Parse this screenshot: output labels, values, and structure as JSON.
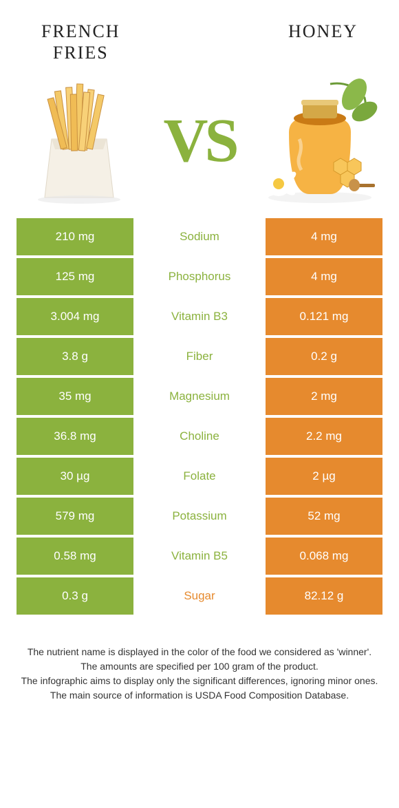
{
  "left_title": "FRENCH FRIES",
  "right_title": "HONEY",
  "vs_label": "VS",
  "colors": {
    "green": "#8bb23e",
    "orange": "#e68a2e",
    "row_gap": "#ffffff"
  },
  "rows": [
    {
      "left": "210 mg",
      "label": "Sodium",
      "right": "4 mg",
      "winner": "left"
    },
    {
      "left": "125 mg",
      "label": "Phosphorus",
      "right": "4 mg",
      "winner": "left"
    },
    {
      "left": "3.004 mg",
      "label": "Vitamin B3",
      "right": "0.121 mg",
      "winner": "left"
    },
    {
      "left": "3.8 g",
      "label": "Fiber",
      "right": "0.2 g",
      "winner": "left"
    },
    {
      "left": "35 mg",
      "label": "Magnesium",
      "right": "2 mg",
      "winner": "left"
    },
    {
      "left": "36.8 mg",
      "label": "Choline",
      "right": "2.2 mg",
      "winner": "left"
    },
    {
      "left": "30 µg",
      "label": "Folate",
      "right": "2 µg",
      "winner": "left"
    },
    {
      "left": "579 mg",
      "label": "Potassium",
      "right": "52 mg",
      "winner": "left"
    },
    {
      "left": "0.58 mg",
      "label": "Vitamin B5",
      "right": "0.068 mg",
      "winner": "left"
    },
    {
      "left": "0.3 g",
      "label": "Sugar",
      "right": "82.12 g",
      "winner": "right"
    }
  ],
  "footer_lines": [
    "The nutrient name is displayed in the color of the food we considered as 'winner'.",
    "The amounts are specified per 100 gram of the product.",
    "The infographic aims to display only the significant differences, ignoring minor ones.",
    "The main source of information is USDA Food Composition Database."
  ]
}
